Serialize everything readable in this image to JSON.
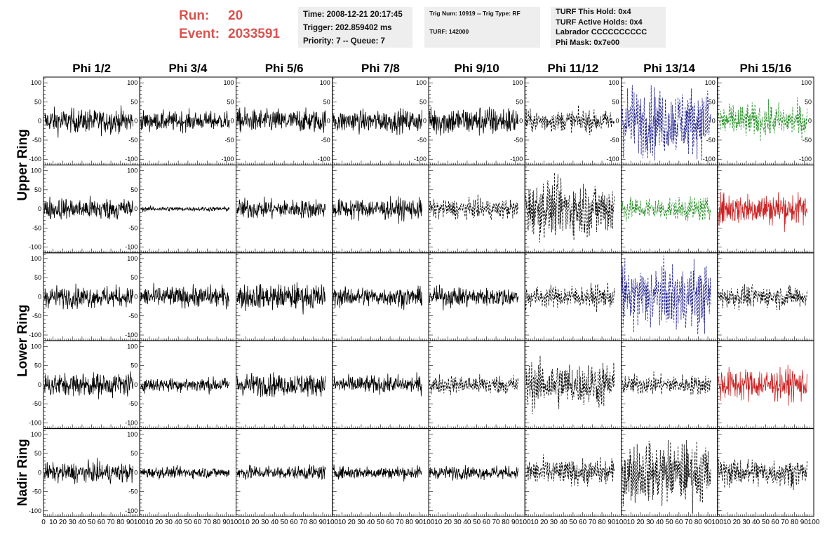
{
  "header": {
    "run_label": "Run:",
    "run_value": "20",
    "event_label": "Event:",
    "event_value": "2033591",
    "time": "Time: 2008-12-21 20:17:45",
    "trigger": "Trigger: 202.859402 ms",
    "priority": "Priority: 7 -- Queue: 7",
    "trig_num": "Trig Num: 10919 -- Trig Type: RF",
    "turf": "TURF: 142000",
    "turf_this_hold": "TURF This Hold: 0x4",
    "turf_active_holds": "TURF Active Holds: 0x4",
    "labrador": "Labrador CCCCCCCCCC",
    "phi_mask": "Phi Mask: 0x7e00"
  },
  "chart_data": {
    "type": "line",
    "columns": [
      "Phi 1/2",
      "Phi 3/4",
      "Phi 5/6",
      "Phi 7/8",
      "Phi 9/10",
      "Phi 11/12",
      "Phi 13/14",
      "Phi 15/16"
    ],
    "rows": [
      "Upper Ring",
      "Upper Ring",
      "Lower Ring",
      "Lower Ring",
      "Nadir Ring"
    ],
    "row_labels": [
      {
        "text": "Upper Ring",
        "rows": [
          0,
          1
        ]
      },
      {
        "text": "Lower Ring",
        "rows": [
          2,
          3
        ]
      },
      {
        "text": "Nadir Ring",
        "rows": [
          4
        ]
      }
    ],
    "xlim": [
      0,
      100
    ],
    "ylim": [
      -115,
      115
    ],
    "y_ticks": [
      -100,
      -50,
      0,
      50,
      100
    ],
    "x_tick_labels": [
      [
        "0",
        "10",
        "20",
        "30",
        "40",
        "50",
        "60",
        "70",
        "80",
        "90",
        "100"
      ],
      [
        "10",
        "20",
        "30",
        "40",
        "50",
        "60",
        "70",
        "80",
        "90",
        "100"
      ],
      [
        "10",
        "20",
        "30",
        "40",
        "50",
        "60",
        "70",
        "80",
        "90",
        "100"
      ],
      [
        "10",
        "20",
        "30",
        "40",
        "50",
        "60",
        "70",
        "80",
        "90",
        "100"
      ],
      [
        "10",
        "20",
        "30",
        "40",
        "50",
        "60",
        "70",
        "80",
        "90",
        "100"
      ],
      [
        "10",
        "20",
        "30",
        "40",
        "50",
        "60",
        "70",
        "80",
        "90",
        "100"
      ],
      [
        "10",
        "20",
        "30",
        "40",
        "50",
        "60",
        "70",
        "80",
        "90",
        "100"
      ],
      [
        "10",
        "20",
        "30",
        "40",
        "50",
        "60",
        "70",
        "80",
        "90",
        "100"
      ]
    ],
    "colors": {
      "black": "#000000",
      "blue": "#1a1a8c",
      "green": "#1e8c1e",
      "red": "#cc2222"
    },
    "panels": [
      [
        {
          "amp": 15,
          "color": "black",
          "dashed": false
        },
        {
          "amp": 12,
          "color": "black",
          "dashed": false
        },
        {
          "amp": 15,
          "color": "black",
          "dashed": false
        },
        {
          "amp": 14,
          "color": "black",
          "dashed": false
        },
        {
          "amp": 18,
          "color": "black",
          "dashed": false
        },
        {
          "amp": 14,
          "color": "black",
          "dashed": true
        },
        {
          "amp": 42,
          "color": "blue",
          "dashed": true
        },
        {
          "amp": 20,
          "color": "green",
          "dashed": true
        }
      ],
      [
        {
          "amp": 14,
          "color": "black",
          "dashed": false
        },
        {
          "amp": 3,
          "color": "black",
          "dashed": false
        },
        {
          "amp": 12,
          "color": "black",
          "dashed": false
        },
        {
          "amp": 13,
          "color": "black",
          "dashed": false
        },
        {
          "amp": 12,
          "color": "black",
          "dashed": true
        },
        {
          "amp": 35,
          "color": "black",
          "dashed": true
        },
        {
          "amp": 15,
          "color": "green",
          "dashed": true
        },
        {
          "amp": 20,
          "color": "red",
          "dashed": false
        }
      ],
      [
        {
          "amp": 13,
          "color": "black",
          "dashed": false
        },
        {
          "amp": 13,
          "color": "black",
          "dashed": false
        },
        {
          "amp": 16,
          "color": "black",
          "dashed": false
        },
        {
          "amp": 12,
          "color": "black",
          "dashed": false
        },
        {
          "amp": 12,
          "color": "black",
          "dashed": false
        },
        {
          "amp": 14,
          "color": "black",
          "dashed": true
        },
        {
          "amp": 40,
          "color": "blue",
          "dashed": true
        },
        {
          "amp": 14,
          "color": "black",
          "dashed": true
        }
      ],
      [
        {
          "amp": 15,
          "color": "black",
          "dashed": false
        },
        {
          "amp": 9,
          "color": "black",
          "dashed": false
        },
        {
          "amp": 14,
          "color": "black",
          "dashed": false
        },
        {
          "amp": 11,
          "color": "black",
          "dashed": false
        },
        {
          "amp": 12,
          "color": "black",
          "dashed": true
        },
        {
          "amp": 28,
          "color": "black",
          "dashed": true
        },
        {
          "amp": 12,
          "color": "black",
          "dashed": true
        },
        {
          "amp": 20,
          "color": "red",
          "dashed": false
        }
      ],
      [
        {
          "amp": 12,
          "color": "black",
          "dashed": false
        },
        {
          "amp": 7,
          "color": "black",
          "dashed": false
        },
        {
          "amp": 9,
          "color": "black",
          "dashed": false
        },
        {
          "amp": 8,
          "color": "black",
          "dashed": false
        },
        {
          "amp": 8,
          "color": "black",
          "dashed": false
        },
        {
          "amp": 16,
          "color": "black",
          "dashed": true
        },
        {
          "amp": 38,
          "color": "black",
          "dashed": true
        },
        {
          "amp": 17,
          "color": "black",
          "dashed": true
        }
      ]
    ]
  }
}
